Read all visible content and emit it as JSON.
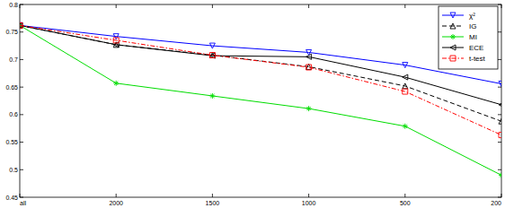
{
  "chart_data": {
    "type": "line",
    "categories": [
      "all",
      "2000",
      "1500",
      "1000",
      "500",
      "200"
    ],
    "ylim": [
      0.45,
      0.8
    ],
    "yticks": [
      0.45,
      0.5,
      0.55,
      0.6,
      0.65,
      0.7,
      0.75,
      0.8
    ],
    "grid": false,
    "legend": "upper right",
    "series": [
      {
        "name": "χ²",
        "color": "#0000ff",
        "marker": "triangle-down",
        "line_style": "solid",
        "values": [
          0.762,
          0.742,
          0.725,
          0.713,
          0.69,
          0.656
        ]
      },
      {
        "name": "IG",
        "color": "#000000",
        "marker": "triangle-up",
        "line_style": "dashed",
        "values": [
          0.762,
          0.727,
          0.708,
          0.687,
          0.652,
          0.588
        ]
      },
      {
        "name": "MI",
        "color": "#00dd00",
        "marker": "star",
        "line_style": "solid",
        "values": [
          0.762,
          0.657,
          0.634,
          0.611,
          0.579,
          0.49
        ]
      },
      {
        "name": "ECE",
        "color": "#000000",
        "marker": "triangle-left",
        "line_style": "solid",
        "values": [
          0.762,
          0.727,
          0.707,
          0.705,
          0.668,
          0.618
        ]
      },
      {
        "name": "t-test",
        "color": "#ff0000",
        "marker": "square",
        "line_style": "dashdot",
        "values": [
          0.762,
          0.735,
          0.708,
          0.686,
          0.642,
          0.563
        ]
      }
    ]
  }
}
